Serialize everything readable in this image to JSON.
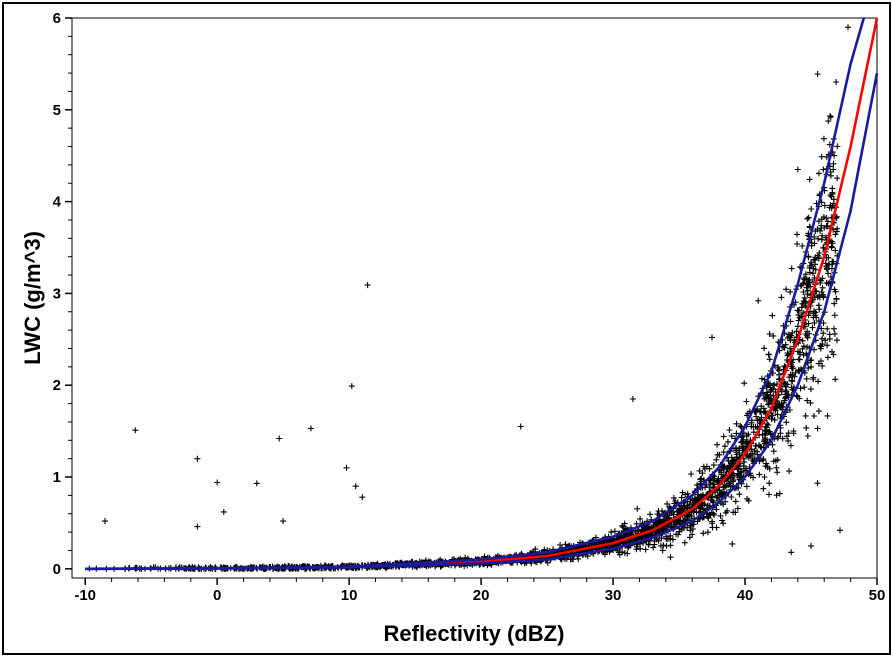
{
  "chart_data": {
    "type": "scatter",
    "title": "",
    "xlabel": "Reflectivity (dBZ)",
    "ylabel": "LWC (g/m^3)",
    "xlim": [
      -11,
      50
    ],
    "ylim": [
      -0.1,
      6
    ],
    "x_ticks": [
      -10,
      0,
      10,
      20,
      30,
      40,
      50
    ],
    "y_ticks": [
      0,
      1,
      2,
      3,
      4,
      5,
      6
    ],
    "grid": false,
    "legend": "none",
    "marker": "+",
    "colors": {
      "points": "#000000",
      "fit": "#ff0000",
      "bounds": "#1a1aa0"
    },
    "fit_curves": [
      {
        "role": "fit",
        "x": [
          -10,
          0,
          10,
          20,
          25,
          30,
          33,
          36,
          38,
          40,
          42,
          44,
          46,
          48,
          49,
          50
        ],
        "y": [
          0.0,
          0.005,
          0.02,
          0.08,
          0.14,
          0.28,
          0.42,
          0.65,
          0.9,
          1.25,
          1.75,
          2.5,
          3.4,
          4.6,
          5.3,
          6.0
        ]
      },
      {
        "role": "upper",
        "x": [
          -10,
          0,
          10,
          20,
          25,
          30,
          33,
          36,
          38,
          40,
          42,
          44,
          46,
          48,
          49
        ],
        "y": [
          0.0,
          0.006,
          0.025,
          0.1,
          0.18,
          0.35,
          0.52,
          0.8,
          1.1,
          1.55,
          2.15,
          3.1,
          4.2,
          5.5,
          6.0
        ]
      },
      {
        "role": "lower",
        "x": [
          -10,
          0,
          10,
          20,
          25,
          30,
          33,
          36,
          38,
          40,
          42,
          44,
          46,
          48,
          50
        ],
        "y": [
          0.0,
          0.004,
          0.015,
          0.06,
          0.1,
          0.22,
          0.34,
          0.52,
          0.72,
          1.0,
          1.4,
          2.0,
          2.8,
          3.9,
          5.4
        ]
      }
    ],
    "outliers": {
      "x": [
        -8.5,
        -6.2,
        -1.5,
        -1.5,
        0.0,
        0.5,
        3.0,
        4.7,
        5.0,
        7.1,
        9.8,
        10.2,
        10.5,
        11.0,
        11.4,
        23.0,
        31.5,
        37.5,
        41.0,
        43.5,
        44.0,
        45.0,
        45.5,
        46.5,
        47.2,
        47.8
      ],
      "y": [
        0.52,
        1.51,
        1.2,
        0.46,
        0.94,
        0.62,
        0.93,
        1.42,
        0.52,
        1.53,
        1.1,
        1.99,
        0.9,
        0.78,
        3.09,
        1.55,
        1.85,
        2.52,
        2.92,
        0.18,
        4.35,
        0.25,
        5.39,
        4.92,
        0.42,
        5.9
      ]
    },
    "cloud": {
      "count": 2600,
      "seed": 7,
      "x_range": [
        -10,
        47
      ],
      "relative_spread_min": 0.35,
      "relative_spread_max": 0.85
    }
  }
}
